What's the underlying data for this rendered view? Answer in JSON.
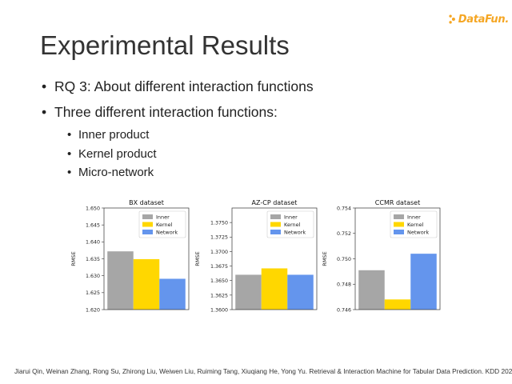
{
  "logo": {
    "text": "DataFun."
  },
  "slide": {
    "title": "Experimental Results",
    "bullets": [
      "RQ 3: About different interaction functions",
      "Three different interaction functions:"
    ],
    "sub_bullets": [
      "Inner product",
      "Kernel product",
      "Micro-network"
    ]
  },
  "colors": {
    "Inner": "#a6a6a6",
    "Kernel": "#ffd700",
    "Network": "#6495ed"
  },
  "chart_data": [
    {
      "type": "bar",
      "title": "BX dataset",
      "ylabel": "RMSE",
      "ylim": [
        1.62,
        1.65
      ],
      "yticks": [
        1.62,
        1.625,
        1.63,
        1.635,
        1.64,
        1.645,
        1.65
      ],
      "tick_labels": [
        "1.620",
        "1.625",
        "1.630",
        "1.635",
        "1.640",
        "1.645",
        "1.650"
      ],
      "legend_position": "top-right",
      "series": [
        {
          "name": "Inner",
          "values": [
            1.6372
          ]
        },
        {
          "name": "Kernel",
          "values": [
            1.6349
          ]
        },
        {
          "name": "Network",
          "values": [
            1.6291
          ]
        }
      ]
    },
    {
      "type": "bar",
      "title": "AZ-CP dataset",
      "ylabel": "RMSE",
      "ylim": [
        1.36,
        1.3775
      ],
      "yticks": [
        1.36,
        1.3625,
        1.365,
        1.3675,
        1.37,
        1.3725,
        1.375
      ],
      "tick_labels": [
        "1.3600",
        "1.3625",
        "1.3650",
        "1.3675",
        "1.3700",
        "1.3725",
        "1.3750"
      ],
      "legend_position": "top-right",
      "series": [
        {
          "name": "Inner",
          "values": [
            1.366
          ]
        },
        {
          "name": "Kernel",
          "values": [
            1.3671
          ]
        },
        {
          "name": "Network",
          "values": [
            1.366
          ]
        }
      ]
    },
    {
      "type": "bar",
      "title": "CCMR dataset",
      "ylabel": "RMSE",
      "ylim": [
        0.746,
        0.754
      ],
      "yticks": [
        0.746,
        0.748,
        0.75,
        0.752,
        0.754
      ],
      "tick_labels": [
        "0.746",
        "0.748",
        "0.750",
        "0.752",
        "0.754"
      ],
      "legend_position": "top-right",
      "series": [
        {
          "name": "Inner",
          "values": [
            0.7491
          ]
        },
        {
          "name": "Kernel",
          "values": [
            0.7468
          ]
        },
        {
          "name": "Network",
          "values": [
            0.7504
          ]
        }
      ]
    }
  ],
  "footer": "Jiarui Qin, Weinan Zhang, Rong Su, Zhirong Liu, Weiwen Liu, Ruiming Tang, Xiuqiang He, Yong Yu. Retrieval & Interaction Machine for Tabular Data Prediction. KDD 2021."
}
